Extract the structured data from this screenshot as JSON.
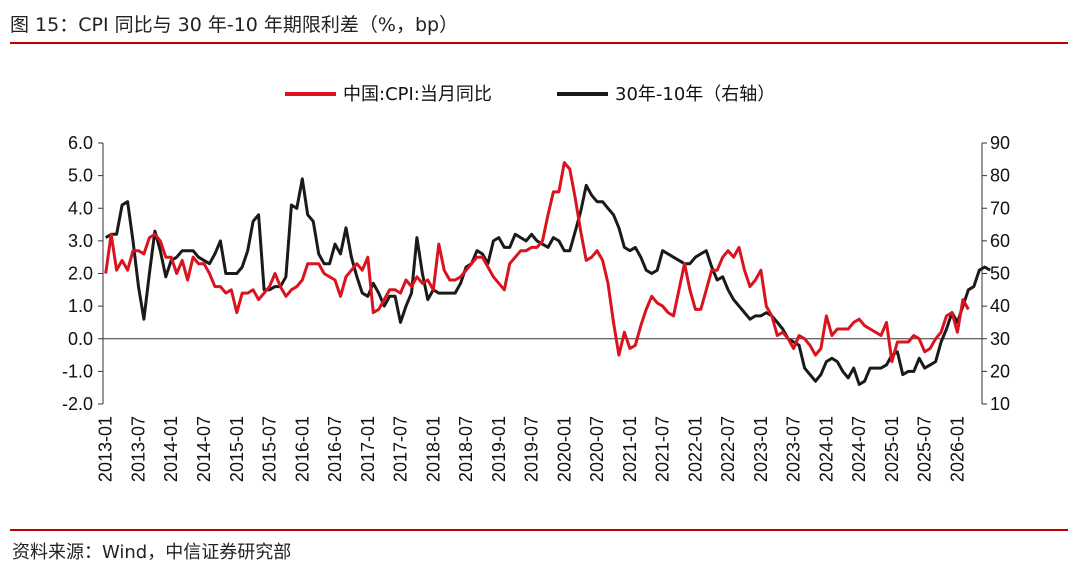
{
  "title": "图 15：CPI 同比与 30 年-10 年期限利差（%，bp）",
  "source": "资料来源：Wind，中信证券研究部",
  "colors": {
    "cpi": "#d9141f",
    "spread": "#1a1a1a",
    "rule": "#c00000"
  },
  "chart_data": {
    "type": "line",
    "legend_position": "top-center",
    "left_axis": {
      "ylim": [
        -2.0,
        6.0
      ],
      "ticks": [
        "6.0",
        "5.0",
        "4.0",
        "3.0",
        "2.0",
        "1.0",
        "0.0",
        "-1.0",
        "-2.0"
      ]
    },
    "right_axis": {
      "ylim": [
        10,
        90
      ],
      "ticks": [
        "90",
        "80",
        "70",
        "60",
        "50",
        "40",
        "30",
        "20",
        "10"
      ]
    },
    "x_ticks": [
      "2013-01",
      "2013-07",
      "2014-01",
      "2014-07",
      "2015-01",
      "2015-07",
      "2016-01",
      "2016-07",
      "2017-01",
      "2017-07",
      "2018-01",
      "2018-07",
      "2019-01",
      "2019-07",
      "2020-01",
      "2020-07",
      "2021-01",
      "2021-07",
      "2022-01",
      "2022-07",
      "2023-01",
      "2023-07",
      "2024-01",
      "2024-07",
      "2025-01",
      "2025-07",
      "2026-01"
    ],
    "start_month": "2013-01",
    "series": [
      {
        "name": "中国:CPI:当月同比",
        "axis": "left",
        "values": [
          2.0,
          3.2,
          2.1,
          2.4,
          2.1,
          2.7,
          2.7,
          2.6,
          3.1,
          3.2,
          3.0,
          2.5,
          2.5,
          2.0,
          2.4,
          1.8,
          2.5,
          2.3,
          2.3,
          2.0,
          1.6,
          1.6,
          1.4,
          1.5,
          0.8,
          1.4,
          1.4,
          1.5,
          1.2,
          1.4,
          1.6,
          2.0,
          1.6,
          1.3,
          1.5,
          1.6,
          1.8,
          2.3,
          2.3,
          2.3,
          2.0,
          1.9,
          1.8,
          1.3,
          1.9,
          2.1,
          2.3,
          2.1,
          2.5,
          0.8,
          0.9,
          1.2,
          1.5,
          1.5,
          1.4,
          1.8,
          1.6,
          1.9,
          1.7,
          1.8,
          1.5,
          2.9,
          2.1,
          1.8,
          1.8,
          1.9,
          2.1,
          2.3,
          2.5,
          2.5,
          2.2,
          1.9,
          1.7,
          1.5,
          2.3,
          2.5,
          2.7,
          2.7,
          2.8,
          2.8,
          3.0,
          3.8,
          4.5,
          4.5,
          5.4,
          5.2,
          4.3,
          3.3,
          2.4,
          2.5,
          2.7,
          2.4,
          1.7,
          0.5,
          -0.5,
          0.2,
          -0.3,
          -0.2,
          0.4,
          0.9,
          1.3,
          1.1,
          1.0,
          0.8,
          0.7,
          1.5,
          2.3,
          1.5,
          0.9,
          0.9,
          1.5,
          2.1,
          2.1,
          2.5,
          2.7,
          2.5,
          2.8,
          2.1,
          1.6,
          1.8,
          2.1,
          1.0,
          0.7,
          0.1,
          0.2,
          0.0,
          -0.3,
          0.1,
          0.0,
          -0.2,
          -0.5,
          -0.3,
          0.7,
          0.1,
          0.3,
          0.3,
          0.3,
          0.5,
          0.6,
          0.4,
          0.3,
          0.2,
          0.1,
          0.5,
          -0.7,
          -0.1,
          -0.1,
          -0.1,
          0.1,
          0.0,
          -0.4,
          -0.3,
          0.0,
          0.2,
          0.7,
          0.8,
          0.2,
          1.2,
          0.9
        ]
      },
      {
        "name": "30年-10年（右轴）",
        "axis": "right",
        "values": [
          61,
          62,
          62,
          71,
          72,
          60,
          46,
          36,
          50,
          63,
          57,
          49,
          54,
          55,
          57,
          57,
          57,
          55,
          54,
          53,
          56,
          60,
          50,
          50,
          50,
          52,
          57,
          66,
          68,
          45,
          45,
          46,
          46,
          49,
          71,
          70,
          79,
          68,
          66,
          56,
          53,
          53,
          59,
          56,
          64,
          55,
          49,
          44,
          43,
          47,
          44,
          40,
          43,
          43,
          35,
          40,
          44,
          61,
          50,
          42,
          45,
          44,
          44,
          44,
          44,
          47,
          52,
          53,
          57,
          56,
          53,
          60,
          61,
          58,
          58,
          62,
          61,
          60,
          62,
          60,
          59,
          58,
          61,
          60,
          57,
          57,
          63,
          69,
          77,
          74,
          72,
          72,
          70,
          68,
          64,
          58,
          57,
          58,
          55,
          51,
          50,
          51,
          57,
          56,
          55,
          54,
          53,
          53,
          55,
          56,
          57,
          52,
          48,
          49,
          45,
          42,
          40,
          38,
          36,
          37,
          37,
          38,
          37,
          35,
          33,
          30,
          29,
          28,
          21,
          19,
          17,
          19,
          23,
          24,
          23,
          20,
          18,
          21,
          16,
          17,
          21,
          21,
          21,
          22,
          25,
          26,
          19,
          20,
          20,
          24,
          21,
          22,
          23,
          29,
          33,
          38,
          35,
          40,
          45,
          46,
          51,
          52,
          51
        ]
      }
    ]
  }
}
